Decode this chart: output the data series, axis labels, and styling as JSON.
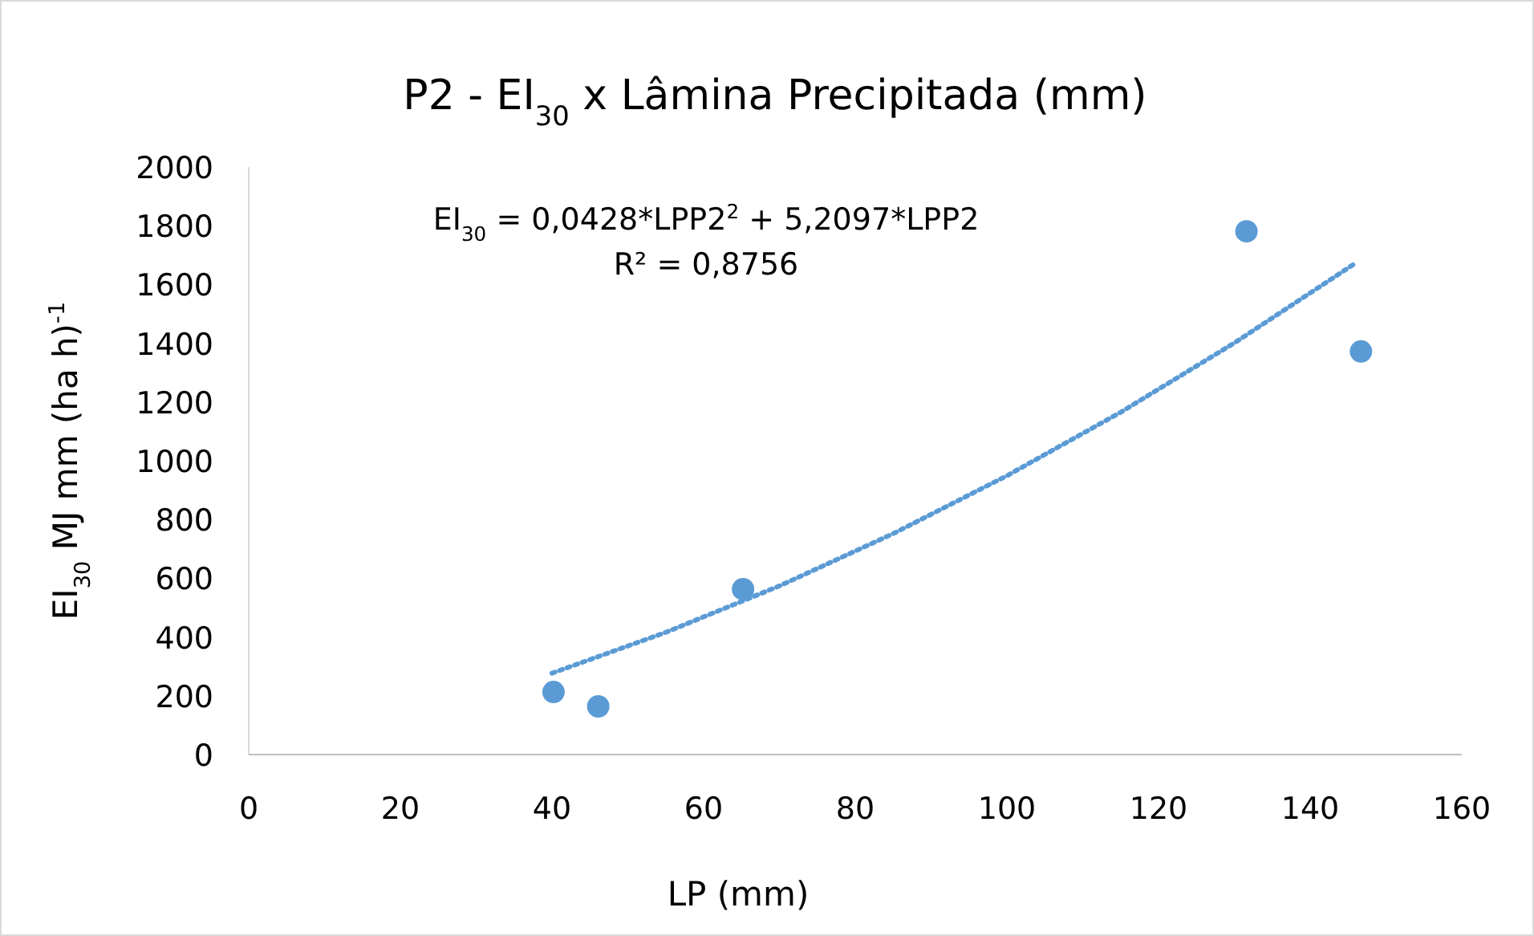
{
  "chart_data": {
    "type": "scatter",
    "title": "P2 - EI$_{30}$ x Lâmina Precipitada (mm)",
    "xlabel": "LP (mm)",
    "ylabel": "EI$_{30}$ MJ mm (ha h)$^{-1}$",
    "annotations": [
      "EI$_{30}$ = 0,0428*LPP2$^{2}$ + 5,2097*LPP2",
      "R² = 0,8756"
    ],
    "xlim": [
      0,
      160
    ],
    "xticks": [
      0,
      20,
      40,
      60,
      80,
      100,
      120,
      140,
      160
    ],
    "ylim": [
      0,
      2000
    ],
    "yticks": [
      0,
      200,
      400,
      600,
      800,
      1000,
      1200,
      1400,
      1600,
      1800,
      2000
    ],
    "grid": false,
    "series": [
      {
        "color": "#5b9bd5",
        "marker": "circle",
        "x": [
          40.2,
          46.1,
          65.2,
          131.6,
          146.7
        ],
        "values": [
          213,
          164,
          563,
          1781,
          1372
        ]
      },
      {
        "type": "line",
        "color": "#5b9bd5",
        "marker": "none",
        "line_style": "dotted",
        "x": [
          40,
          55,
          70,
          85,
          100,
          115,
          130,
          146
        ],
        "values": [
          277,
          416,
          574,
          752,
          949,
          1165,
          1401,
          1673
        ]
      }
    ]
  }
}
